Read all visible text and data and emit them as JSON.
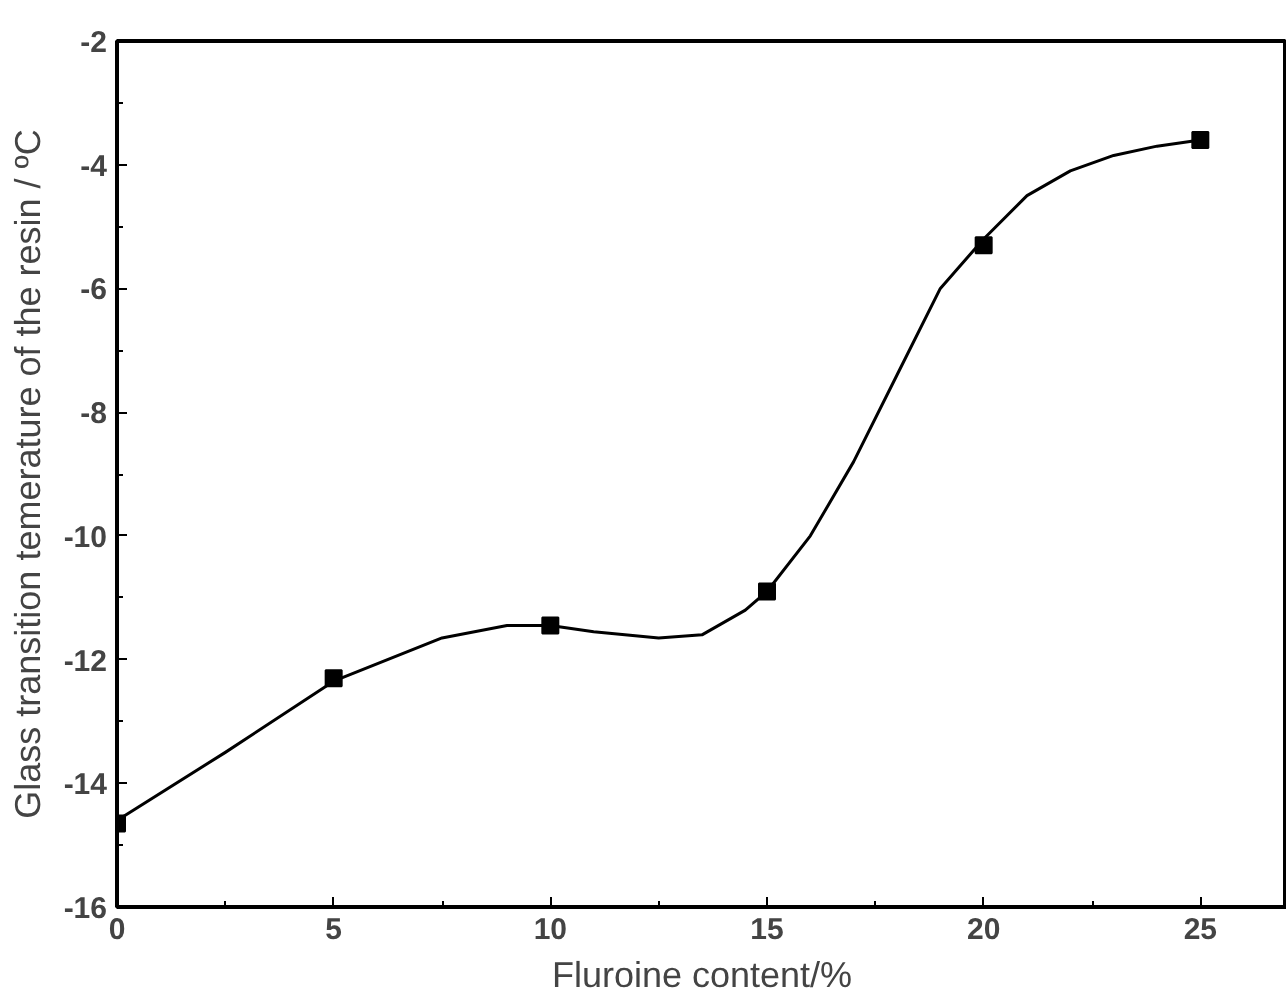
{
  "chart_data": {
    "type": "scatter",
    "xlabel": "Fluroine content/%",
    "ylabel": "Glass transition temerature of the resin / ºC",
    "series": [
      {
        "color": "#000000",
        "marker": "square",
        "x": [
          0,
          5,
          10,
          15,
          20,
          25
        ],
        "values": [
          -14.65,
          -12.3,
          -11.45,
          -10.9,
          -5.3,
          -3.6
        ]
      },
      {
        "type": "line",
        "color": "#000000",
        "marker": "none",
        "x": [
          0,
          2.5,
          5,
          7.5,
          9,
          10,
          11,
          12.5,
          13.5,
          14.5,
          15,
          16,
          17,
          18,
          19,
          20,
          21,
          22,
          23,
          24,
          25
        ],
        "values": [
          -14.6,
          -13.5,
          -12.35,
          -11.65,
          -11.45,
          -11.45,
          -11.55,
          -11.65,
          -11.6,
          -11.2,
          -10.9,
          -10.0,
          -8.8,
          -7.4,
          -6.0,
          -5.2,
          -4.5,
          -4.1,
          -3.85,
          -3.7,
          -3.6
        ]
      }
    ],
    "xlim": [
      0,
      27
    ],
    "ylim": [
      -16,
      -2
    ],
    "xticks": [
      0,
      5,
      10,
      15,
      20,
      25
    ],
    "yticks": [
      -16,
      -14,
      -12,
      -10,
      -8,
      -6,
      -4,
      -2
    ],
    "grid": false
  }
}
